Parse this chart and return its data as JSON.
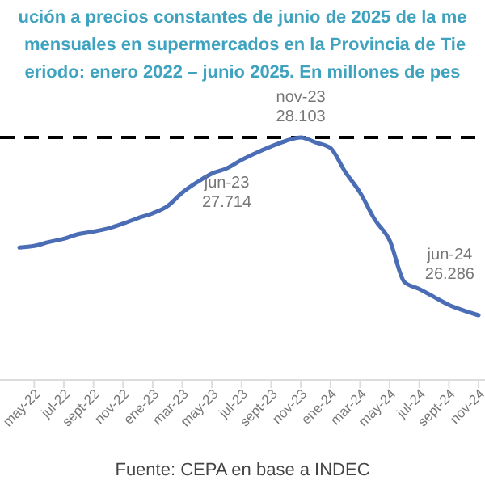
{
  "chart_data": {
    "type": "line",
    "title": "ución a precios constantes de junio de 2025 de la me\n mensuales en supermercados en la Provincia de Tie\neriodo: enero 2022 – junio 2025. En millones de pes",
    "categories": [
      null,
      "may-22",
      null,
      "jul-22",
      null,
      "sept-22",
      null,
      "nov-22",
      null,
      "ene-23",
      null,
      "mar-23",
      null,
      "may-23",
      null,
      "jul-23",
      null,
      "sept-23",
      null,
      "nov-23",
      null,
      "ene-24",
      null,
      "mar-24",
      null,
      "may-24",
      null,
      "jul-24",
      null,
      "sept-24",
      null,
      "nov-24"
    ],
    "series": [
      {
        "color": "#4a6db5",
        "values": [
          26.72,
          26.74,
          26.79,
          26.83,
          26.89,
          26.92,
          26.96,
          27.02,
          27.09,
          27.15,
          27.24,
          27.41,
          27.54,
          27.65,
          27.714,
          27.82,
          27.91,
          27.99,
          28.06,
          28.103,
          28.04,
          27.97,
          27.67,
          27.41,
          27.07,
          26.81,
          26.286,
          26.2,
          26.1,
          26.0,
          25.93,
          25.87
        ],
        "value_labels": [
          null,
          null,
          null,
          null,
          null,
          null,
          null,
          null,
          null,
          null,
          null,
          null,
          null,
          null,
          "jun-23\n27.714",
          null,
          null,
          null,
          null,
          "nov-23\n28.103",
          null,
          null,
          null,
          null,
          null,
          null,
          "jun-24\n26.286",
          null,
          null,
          null,
          null,
          null
        ]
      }
    ],
    "tick_labels": "x",
    "line_style": "solid",
    "marker": "none",
    "ref_lines": [
      {
        "axis": "y",
        "value": 28.103,
        "color": "#000000",
        "line_style": "dashed"
      }
    ],
    "annotations": [
      "Fuente: CEPA en base a INDEC"
    ]
  }
}
